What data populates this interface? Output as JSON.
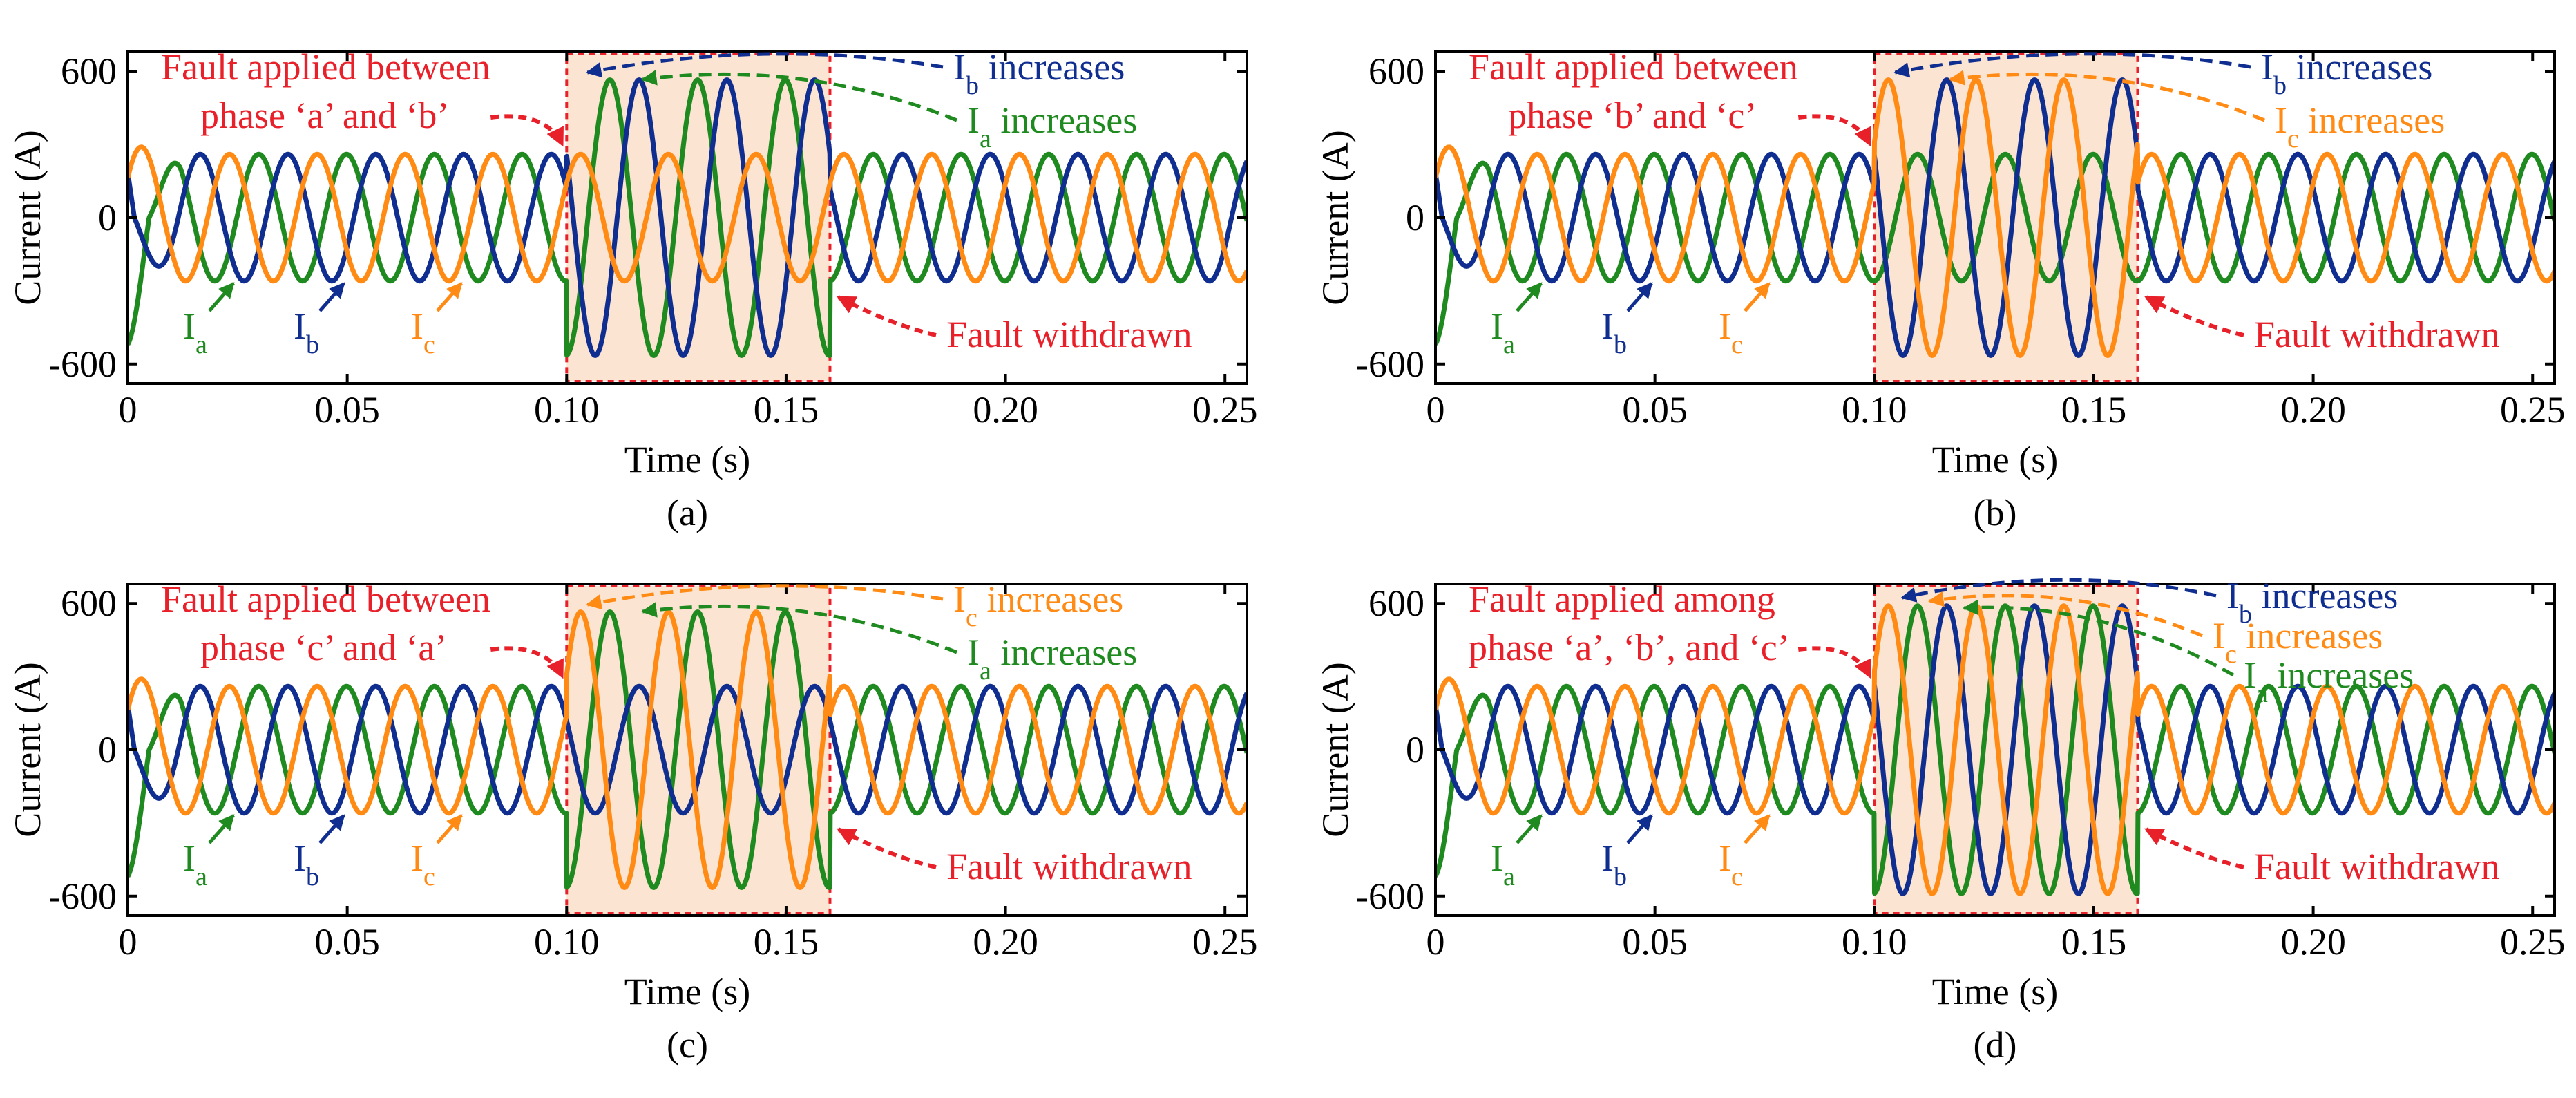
{
  "colors": {
    "Ia": "#1f8a1f",
    "Ib": "#102e8f",
    "Ic": "#ff8a14",
    "annotation": "#e8202a",
    "fault_fill": "#fbe5d2",
    "axis": "#000000"
  },
  "chart_data": [
    {
      "type": "line",
      "panel_label": "(a)",
      "xlabel": "Time (s)",
      "ylabel": "Current (A)",
      "xlim": [
        0,
        0.255
      ],
      "ylim": [
        -680,
        680
      ],
      "xticks": [
        0,
        0.05,
        0.1,
        0.15,
        0.2,
        0.25
      ],
      "xtick_labels": [
        "0",
        "0.05",
        "0.10",
        "0.15",
        "0.20",
        "0.25"
      ],
      "yticks": [
        600,
        0,
        -600
      ],
      "ytick_labels": [
        "600",
        "0",
        "-600"
      ],
      "frequency_hz": 50,
      "fault_window": [
        0.1,
        0.16
      ],
      "series": [
        {
          "name": "Ia",
          "color": "#1f8a1f",
          "normal_amplitude": 260,
          "fault_amplitude": 565,
          "startup_peak": -520
        },
        {
          "name": "Ib",
          "color": "#102e8f",
          "normal_amplitude": 260,
          "fault_amplitude": 565,
          "startup_peak": 400
        },
        {
          "name": "Ic",
          "color": "#ff8a14",
          "normal_amplitude": 260,
          "fault_amplitude": 260,
          "startup_peak": 300
        }
      ],
      "annotations": {
        "fault_applied": {
          "line1": "Fault applied between",
          "line2_prefix": "phase ‘a’ and ‘b’"
        },
        "increase_1": {
          "sym": "I",
          "sub": "b",
          "text": " increases",
          "color": "#102e8f"
        },
        "increase_2": {
          "sym": "I",
          "sub": "a",
          "text": " increases",
          "color": "#1f8a1f"
        },
        "fault_withdrawn": "Fault withdrawn",
        "phase_labels": [
          {
            "sym": "I",
            "sub": "a",
            "color": "#1f8a1f"
          },
          {
            "sym": "I",
            "sub": "b",
            "color": "#102e8f"
          },
          {
            "sym": "I",
            "sub": "c",
            "color": "#ff8a14"
          }
        ]
      }
    },
    {
      "type": "line",
      "panel_label": "(b)",
      "xlabel": "Time (s)",
      "ylabel": "Current (A)",
      "xlim": [
        0,
        0.255
      ],
      "ylim": [
        -680,
        680
      ],
      "xticks": [
        0,
        0.05,
        0.1,
        0.15,
        0.2,
        0.25
      ],
      "xtick_labels": [
        "0",
        "0.05",
        "0.10",
        "0.15",
        "0.20",
        "0.25"
      ],
      "yticks": [
        600,
        0,
        -600
      ],
      "ytick_labels": [
        "600",
        "0",
        "-600"
      ],
      "frequency_hz": 50,
      "fault_window": [
        0.1,
        0.16
      ],
      "series": [
        {
          "name": "Ia",
          "color": "#1f8a1f",
          "normal_amplitude": 260,
          "fault_amplitude": 260,
          "startup_peak": -520
        },
        {
          "name": "Ib",
          "color": "#102e8f",
          "normal_amplitude": 260,
          "fault_amplitude": 565,
          "startup_peak": 400
        },
        {
          "name": "Ic",
          "color": "#ff8a14",
          "normal_amplitude": 260,
          "fault_amplitude": 565,
          "startup_peak": 300
        }
      ],
      "annotations": {
        "fault_applied": {
          "line1": "Fault applied between",
          "line2_prefix": "phase ‘b’ and ‘c’"
        },
        "increase_1": {
          "sym": "I",
          "sub": "b",
          "text": " increases",
          "color": "#102e8f"
        },
        "increase_2": {
          "sym": "I",
          "sub": "c",
          "text": " increases",
          "color": "#ff8a14"
        },
        "fault_withdrawn": "Fault withdrawn",
        "phase_labels": [
          {
            "sym": "I",
            "sub": "a",
            "color": "#1f8a1f"
          },
          {
            "sym": "I",
            "sub": "b",
            "color": "#102e8f"
          },
          {
            "sym": "I",
            "sub": "c",
            "color": "#ff8a14"
          }
        ]
      }
    },
    {
      "type": "line",
      "panel_label": "(c)",
      "xlabel": "Time (s)",
      "ylabel": "Current (A)",
      "xlim": [
        0,
        0.255
      ],
      "ylim": [
        -680,
        680
      ],
      "xticks": [
        0,
        0.05,
        0.1,
        0.15,
        0.2,
        0.25
      ],
      "xtick_labels": [
        "0",
        "0.05",
        "0.10",
        "0.15",
        "0.20",
        "0.25"
      ],
      "yticks": [
        600,
        0,
        -600
      ],
      "ytick_labels": [
        "600",
        "0",
        "-600"
      ],
      "frequency_hz": 50,
      "fault_window": [
        0.1,
        0.16
      ],
      "series": [
        {
          "name": "Ia",
          "color": "#1f8a1f",
          "normal_amplitude": 260,
          "fault_amplitude": 565,
          "startup_peak": -520
        },
        {
          "name": "Ib",
          "color": "#102e8f",
          "normal_amplitude": 260,
          "fault_amplitude": 260,
          "startup_peak": 400
        },
        {
          "name": "Ic",
          "color": "#ff8a14",
          "normal_amplitude": 260,
          "fault_amplitude": 565,
          "startup_peak": 300
        }
      ],
      "annotations": {
        "fault_applied": {
          "line1": "Fault applied between",
          "line2_prefix": "phase ‘c’ and ‘a’"
        },
        "increase_1": {
          "sym": "I",
          "sub": "c",
          "text": " increases",
          "color": "#ff8a14"
        },
        "increase_2": {
          "sym": "I",
          "sub": "a",
          "text": " increases",
          "color": "#1f8a1f"
        },
        "fault_withdrawn": "Fault withdrawn",
        "phase_labels": [
          {
            "sym": "I",
            "sub": "a",
            "color": "#1f8a1f"
          },
          {
            "sym": "I",
            "sub": "b",
            "color": "#102e8f"
          },
          {
            "sym": "I",
            "sub": "c",
            "color": "#ff8a14"
          }
        ]
      }
    },
    {
      "type": "line",
      "panel_label": "(d)",
      "xlabel": "Time (s)",
      "ylabel": "Current (A)",
      "xlim": [
        0,
        0.255
      ],
      "ylim": [
        -680,
        680
      ],
      "xticks": [
        0,
        0.05,
        0.1,
        0.15,
        0.2,
        0.25
      ],
      "xtick_labels": [
        "0",
        "0.05",
        "0.10",
        "0.15",
        "0.20",
        "0.25"
      ],
      "yticks": [
        600,
        0,
        -600
      ],
      "ytick_labels": [
        "600",
        "0",
        "-600"
      ],
      "frequency_hz": 50,
      "fault_window": [
        0.1,
        0.16
      ],
      "series": [
        {
          "name": "Ia",
          "color": "#1f8a1f",
          "normal_amplitude": 260,
          "fault_amplitude": 590,
          "startup_peak": -520
        },
        {
          "name": "Ib",
          "color": "#102e8f",
          "normal_amplitude": 260,
          "fault_amplitude": 590,
          "startup_peak": 400
        },
        {
          "name": "Ic",
          "color": "#ff8a14",
          "normal_amplitude": 260,
          "fault_amplitude": 590,
          "startup_peak": 300
        }
      ],
      "annotations": {
        "fault_applied": {
          "line1": "Fault applied among",
          "line2_prefix": "phase ‘a’, ‘b’, and ‘c’"
        },
        "increase_1": {
          "sym": "I",
          "sub": "b",
          "text": " increases",
          "color": "#102e8f"
        },
        "increase_2": {
          "sym": "I",
          "sub": "c",
          "text": " increases",
          "color": "#ff8a14"
        },
        "increase_3": {
          "sym": "I",
          "sub": "a",
          "text": " increases",
          "color": "#1f8a1f"
        },
        "fault_withdrawn": "Fault withdrawn",
        "phase_labels": [
          {
            "sym": "I",
            "sub": "a",
            "color": "#1f8a1f"
          },
          {
            "sym": "I",
            "sub": "b",
            "color": "#102e8f"
          },
          {
            "sym": "I",
            "sub": "c",
            "color": "#ff8a14"
          }
        ]
      }
    }
  ]
}
